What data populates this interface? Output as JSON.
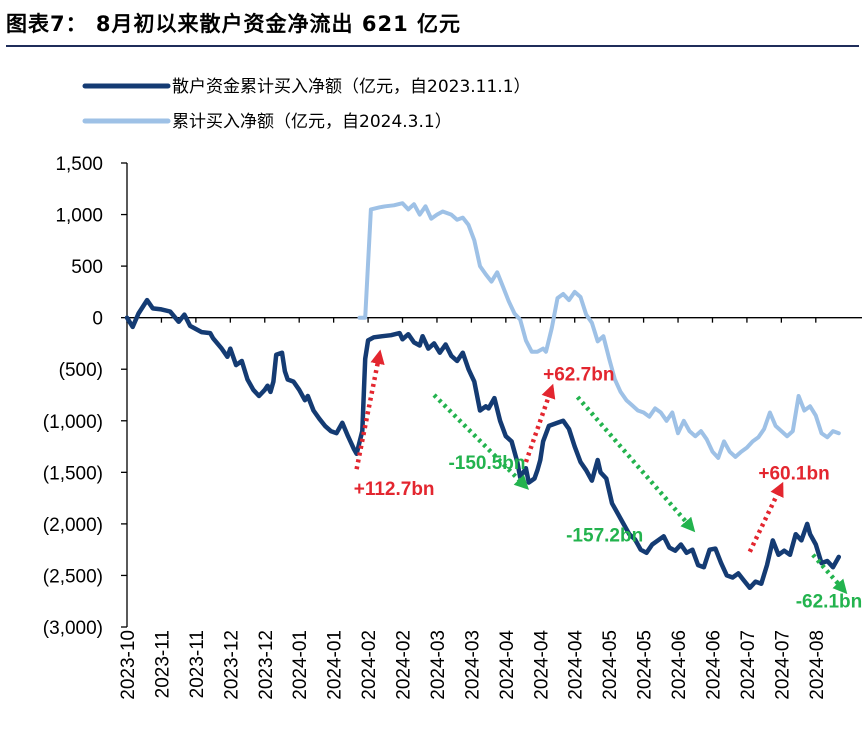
{
  "page_title": "图表7： 8月初以来散户资金净流出 621 亿元",
  "colors": {
    "dark_series": "#143b73",
    "light_series": "#9ec1e6",
    "up_arrow": "#e3262f",
    "down_arrow": "#23b34e"
  },
  "chart_data": {
    "type": "line",
    "title": "",
    "xlabel": "",
    "ylabel": "",
    "ylim": [
      -3000,
      1500
    ],
    "yticks": [
      1500,
      1000,
      500,
      0,
      -500,
      -1000,
      -1500,
      -2000,
      -2500,
      -3000
    ],
    "ytick_labels": [
      "1,500",
      "1,000",
      "500",
      "0",
      "(500)",
      "(1,000)",
      "(1,500)",
      "(2,000)",
      "(2,500)",
      "(3,000)"
    ],
    "xtick_labels": [
      "2023-10",
      "2023-11",
      "2023-11",
      "2023-12",
      "2023-12",
      "2024-01",
      "2024-01",
      "2024-02",
      "2024-02",
      "2024-03",
      "2024-03",
      "2024-04",
      "2024-04",
      "2024-04",
      "2024-05",
      "2024-05",
      "2024-06",
      "2024-06",
      "2024-07",
      "2024-07",
      "2024-08"
    ],
    "grid": false,
    "legend_position": "top-left",
    "series": [
      {
        "name": "散户资金累计买入净额（亿元，自2023.11.1）",
        "color": "#143b73",
        "points": [
          [
            0.0,
            0
          ],
          [
            0.2,
            -90
          ],
          [
            0.4,
            40
          ],
          [
            0.7,
            170
          ],
          [
            0.9,
            90
          ],
          [
            1.2,
            80
          ],
          [
            1.5,
            60
          ],
          [
            1.8,
            -40
          ],
          [
            2.0,
            30
          ],
          [
            2.2,
            -80
          ],
          [
            2.6,
            -140
          ],
          [
            2.9,
            -150
          ],
          [
            3.0,
            -200
          ],
          [
            3.3,
            -300
          ],
          [
            3.5,
            -380
          ],
          [
            3.6,
            -300
          ],
          [
            3.8,
            -460
          ],
          [
            4.0,
            -420
          ],
          [
            4.2,
            -600
          ],
          [
            4.4,
            -700
          ],
          [
            4.6,
            -760
          ],
          [
            4.8,
            -700
          ],
          [
            4.9,
            -660
          ],
          [
            5.0,
            -720
          ],
          [
            5.1,
            -620
          ],
          [
            5.2,
            -360
          ],
          [
            5.4,
            -340
          ],
          [
            5.5,
            -520
          ],
          [
            5.6,
            -600
          ],
          [
            5.8,
            -620
          ],
          [
            6.0,
            -700
          ],
          [
            6.2,
            -800
          ],
          [
            6.3,
            -760
          ],
          [
            6.5,
            -900
          ],
          [
            6.7,
            -980
          ],
          [
            6.9,
            -1050
          ],
          [
            7.1,
            -1100
          ],
          [
            7.3,
            -1120
          ],
          [
            7.5,
            -1020
          ],
          [
            7.7,
            -1150
          ],
          [
            7.9,
            -1270
          ],
          [
            8.0,
            -1320
          ],
          [
            8.2,
            -1100
          ],
          [
            8.3,
            -400
          ],
          [
            8.4,
            -220
          ],
          [
            8.6,
            -190
          ],
          [
            8.9,
            -180
          ],
          [
            9.2,
            -170
          ],
          [
            9.5,
            -150
          ],
          [
            9.6,
            -210
          ],
          [
            9.8,
            -160
          ],
          [
            10.0,
            -240
          ],
          [
            10.2,
            -270
          ],
          [
            10.3,
            -180
          ],
          [
            10.5,
            -300
          ],
          [
            10.7,
            -250
          ],
          [
            10.9,
            -340
          ],
          [
            11.1,
            -260
          ],
          [
            11.3,
            -370
          ],
          [
            11.5,
            -420
          ],
          [
            11.7,
            -340
          ],
          [
            11.9,
            -500
          ],
          [
            12.0,
            -560
          ],
          [
            12.1,
            -620
          ],
          [
            12.3,
            -900
          ],
          [
            12.5,
            -860
          ],
          [
            12.6,
            -880
          ],
          [
            12.8,
            -780
          ],
          [
            13.0,
            -1000
          ],
          [
            13.2,
            -1150
          ],
          [
            13.4,
            -1200
          ],
          [
            13.6,
            -1400
          ],
          [
            13.7,
            -1550
          ],
          [
            13.9,
            -1460
          ],
          [
            14.0,
            -1600
          ],
          [
            14.2,
            -1560
          ],
          [
            14.3,
            -1480
          ],
          [
            14.4,
            -1380
          ],
          [
            14.5,
            -1200
          ],
          [
            14.7,
            -1050
          ],
          [
            15.0,
            -1020
          ],
          [
            15.2,
            -1000
          ],
          [
            15.4,
            -1080
          ],
          [
            15.6,
            -1250
          ],
          [
            15.8,
            -1400
          ],
          [
            16.0,
            -1480
          ],
          [
            16.2,
            -1580
          ],
          [
            16.4,
            -1380
          ],
          [
            16.5,
            -1500
          ],
          [
            16.7,
            -1560
          ],
          [
            16.9,
            -1800
          ],
          [
            17.1,
            -1900
          ],
          [
            17.3,
            -2000
          ],
          [
            17.5,
            -2100
          ],
          [
            17.7,
            -2150
          ],
          [
            17.9,
            -2250
          ],
          [
            18.1,
            -2280
          ],
          [
            18.3,
            -2200
          ],
          [
            18.5,
            -2160
          ],
          [
            18.7,
            -2120
          ],
          [
            18.9,
            -2230
          ],
          [
            19.1,
            -2260
          ],
          [
            19.3,
            -2200
          ],
          [
            19.5,
            -2280
          ],
          [
            19.7,
            -2250
          ],
          [
            19.9,
            -2400
          ],
          [
            20.1,
            -2420
          ],
          [
            20.3,
            -2250
          ],
          [
            20.5,
            -2240
          ],
          [
            20.7,
            -2380
          ],
          [
            20.9,
            -2500
          ],
          [
            21.1,
            -2520
          ],
          [
            21.3,
            -2480
          ],
          [
            21.5,
            -2550
          ],
          [
            21.7,
            -2620
          ],
          [
            21.9,
            -2560
          ],
          [
            22.1,
            -2580
          ],
          [
            22.3,
            -2400
          ],
          [
            22.5,
            -2160
          ],
          [
            22.7,
            -2300
          ],
          [
            22.9,
            -2260
          ],
          [
            23.1,
            -2300
          ],
          [
            23.3,
            -2100
          ],
          [
            23.5,
            -2160
          ],
          [
            23.7,
            -2000
          ],
          [
            23.8,
            -2100
          ],
          [
            24.0,
            -2200
          ],
          [
            24.2,
            -2380
          ],
          [
            24.4,
            -2360
          ],
          [
            24.6,
            -2420
          ],
          [
            24.8,
            -2320
          ]
        ]
      },
      {
        "name": "累计买入净额（亿元，自2024.3.1）",
        "color": "#9ec1e6",
        "points": [
          [
            8.1,
            0
          ],
          [
            8.3,
            0
          ],
          [
            8.5,
            1050
          ],
          [
            8.8,
            1070
          ],
          [
            9.0,
            1080
          ],
          [
            9.3,
            1090
          ],
          [
            9.6,
            1110
          ],
          [
            9.8,
            1050
          ],
          [
            10.0,
            1100
          ],
          [
            10.2,
            1000
          ],
          [
            10.4,
            1080
          ],
          [
            10.6,
            960
          ],
          [
            10.8,
            1000
          ],
          [
            11.0,
            1030
          ],
          [
            11.3,
            1000
          ],
          [
            11.5,
            950
          ],
          [
            11.7,
            970
          ],
          [
            11.9,
            900
          ],
          [
            12.1,
            750
          ],
          [
            12.3,
            500
          ],
          [
            12.5,
            420
          ],
          [
            12.7,
            350
          ],
          [
            12.9,
            440
          ],
          [
            13.1,
            300
          ],
          [
            13.3,
            160
          ],
          [
            13.5,
            40
          ],
          [
            13.7,
            -20
          ],
          [
            13.9,
            -220
          ],
          [
            14.1,
            -330
          ],
          [
            14.3,
            -330
          ],
          [
            14.5,
            -300
          ],
          [
            14.6,
            -330
          ],
          [
            14.8,
            -100
          ],
          [
            15.0,
            190
          ],
          [
            15.2,
            230
          ],
          [
            15.4,
            170
          ],
          [
            15.6,
            250
          ],
          [
            15.8,
            200
          ],
          [
            16.0,
            30
          ],
          [
            16.2,
            -50
          ],
          [
            16.4,
            -230
          ],
          [
            16.6,
            -180
          ],
          [
            16.8,
            -400
          ],
          [
            17.0,
            -600
          ],
          [
            17.2,
            -720
          ],
          [
            17.4,
            -800
          ],
          [
            17.6,
            -850
          ],
          [
            17.8,
            -900
          ],
          [
            18.0,
            -920
          ],
          [
            18.2,
            -960
          ],
          [
            18.4,
            -880
          ],
          [
            18.6,
            -920
          ],
          [
            18.8,
            -1000
          ],
          [
            19.0,
            -920
          ],
          [
            19.2,
            -1120
          ],
          [
            19.4,
            -1000
          ],
          [
            19.6,
            -1100
          ],
          [
            19.8,
            -1150
          ],
          [
            20.0,
            -1100
          ],
          [
            20.2,
            -1180
          ],
          [
            20.4,
            -1300
          ],
          [
            20.6,
            -1360
          ],
          [
            20.8,
            -1200
          ],
          [
            21.0,
            -1300
          ],
          [
            21.2,
            -1350
          ],
          [
            21.4,
            -1300
          ],
          [
            21.6,
            -1260
          ],
          [
            21.8,
            -1200
          ],
          [
            22.0,
            -1160
          ],
          [
            22.2,
            -1080
          ],
          [
            22.4,
            -920
          ],
          [
            22.6,
            -1050
          ],
          [
            22.8,
            -1100
          ],
          [
            23.0,
            -1150
          ],
          [
            23.2,
            -1100
          ],
          [
            23.4,
            -760
          ],
          [
            23.6,
            -900
          ],
          [
            23.8,
            -860
          ],
          [
            24.0,
            -950
          ],
          [
            24.2,
            -1120
          ],
          [
            24.4,
            -1160
          ],
          [
            24.6,
            -1100
          ],
          [
            24.8,
            -1120
          ]
        ]
      }
    ],
    "annotations": [
      {
        "text": "+112.7bn",
        "type": "up",
        "from": [
          8.0,
          -1470
        ],
        "to": [
          8.8,
          -350
        ],
        "label_pos": [
          7.9,
          -1720
        ]
      },
      {
        "text": "-150.5bn",
        "type": "down",
        "from": [
          10.7,
          -750
        ],
        "to": [
          13.9,
          -1640
        ],
        "label_pos": [
          11.2,
          -1470
        ]
      },
      {
        "text": "+62.7bn",
        "type": "up",
        "from": [
          13.9,
          -1400
        ],
        "to": [
          14.8,
          -680
        ],
        "label_pos": [
          14.5,
          -610
        ]
      },
      {
        "text": "-157.2bn",
        "type": "down",
        "from": [
          15.7,
          -770
        ],
        "to": [
          19.7,
          -2050
        ],
        "label_pos": [
          15.3,
          -2170
        ]
      },
      {
        "text": "+60.1bn",
        "type": "up",
        "from": [
          21.7,
          -2270
        ],
        "to": [
          22.8,
          -1630
        ],
        "label_pos": [
          22.0,
          -1570
        ]
      },
      {
        "text": "-62.1bn",
        "type": "down",
        "from": [
          23.9,
          -2300
        ],
        "to": [
          25.0,
          -2650
        ],
        "label_pos": [
          23.3,
          -2810
        ]
      }
    ]
  }
}
